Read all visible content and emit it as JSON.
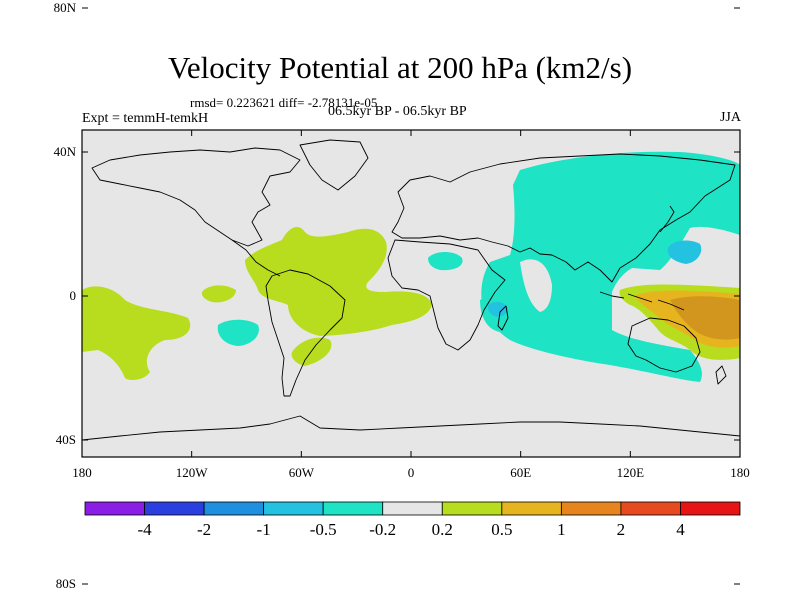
{
  "map": {
    "title": "Velocity Potential at 200 hPa (km2/s)",
    "stats_label": "rmsd= 0.223621 diff= -2.78131e-05",
    "experiment_label": "Expt = temmH-temkH",
    "period_label": "06.5kyr BP - 06.5kyr BP",
    "season_label": "JJA",
    "lat_ticks": [
      "80N",
      "40N",
      "0",
      "40S",
      "80S"
    ],
    "lon_ticks": [
      "180",
      "120W",
      "60W",
      "0",
      "60E",
      "120E",
      "180"
    ],
    "lat_values": [
      80,
      40,
      0,
      -40,
      -80
    ],
    "lon_values": [
      -180,
      -120,
      -60,
      0,
      60,
      120,
      180
    ]
  },
  "colorbar": {
    "labels": [
      "-4",
      "-2",
      "-1",
      "-0.5",
      "-0.2",
      "0.2",
      "0.5",
      "1",
      "2",
      "4"
    ],
    "colors": [
      "#8a1ee6",
      "#2a3fe0",
      "#1f8fe0",
      "#22c2e0",
      "#1ee3c4",
      "#e6e6e6",
      "#b8dc1e",
      "#e6b41e",
      "#e6841e",
      "#e64a1e",
      "#e61414"
    ]
  },
  "colors": {
    "background": "#e6e6e6",
    "negative_fill": "#1ee3c4",
    "negative_core": "#22c2e0",
    "positive_fill": "#b8dc1e",
    "positive_mid": "#e6b41e",
    "positive_core": "#d2961e"
  }
}
